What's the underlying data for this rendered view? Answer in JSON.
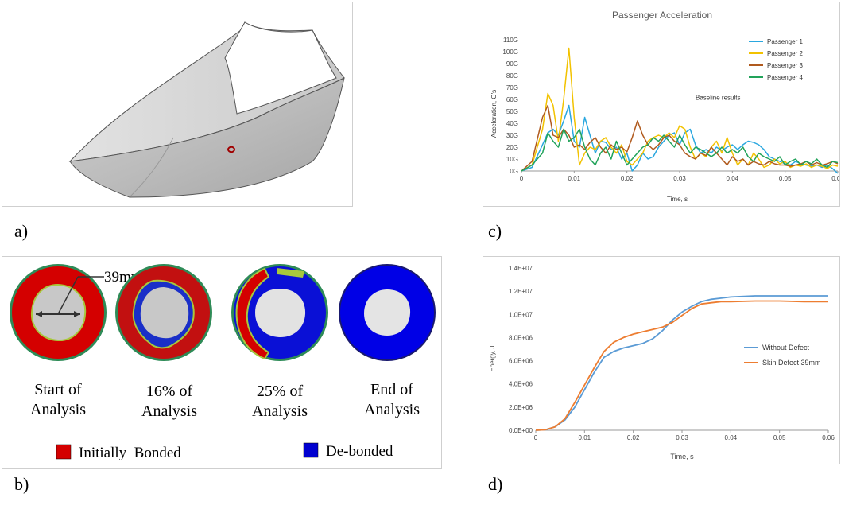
{
  "panel_labels": {
    "a": "a)",
    "b": "b)",
    "c": "c)",
    "d": "d)"
  },
  "figure_b": {
    "dimension_label": "39mm",
    "circles": [
      {
        "caption_line1": "Start of",
        "caption_line2": "Analysis"
      },
      {
        "caption_line1": "16% of",
        "caption_line2": "Analysis"
      },
      {
        "caption_line1": "25% of",
        "caption_line2": "Analysis"
      },
      {
        "caption_line1": "End of",
        "caption_line2": "Analysis"
      }
    ],
    "legend": [
      {
        "label": "Initially  Bonded",
        "color": "#d40000"
      },
      {
        "label": "De-bonded",
        "color": "#0000d0"
      }
    ]
  },
  "chart_data": [
    {
      "type": "line",
      "title": "Passenger Acceleration",
      "xlabel": "Time, s",
      "ylabel": "Acceleration, G's",
      "xlim": [
        0,
        0.06
      ],
      "ylim": [
        0,
        110
      ],
      "x_ticks": [
        "0",
        "0.01",
        "0.02",
        "0.03",
        "0.04",
        "0.05",
        "0.06"
      ],
      "y_ticks": [
        "0G",
        "10G",
        "20G",
        "30G",
        "40G",
        "50G",
        "60G",
        "70G",
        "80G",
        "90G",
        "100G",
        "110G"
      ],
      "baseline": {
        "label": "Baseline results",
        "value": 57
      },
      "legend_position": "top-right",
      "x": [
        0,
        0.002,
        0.004,
        0.005,
        0.006,
        0.007,
        0.008,
        0.009,
        0.01,
        0.011,
        0.012,
        0.013,
        0.014,
        0.015,
        0.016,
        0.017,
        0.018,
        0.019,
        0.02,
        0.021,
        0.022,
        0.023,
        0.024,
        0.025,
        0.026,
        0.027,
        0.028,
        0.029,
        0.03,
        0.031,
        0.032,
        0.033,
        0.034,
        0.035,
        0.036,
        0.037,
        0.038,
        0.039,
        0.04,
        0.041,
        0.042,
        0.043,
        0.044,
        0.045,
        0.046,
        0.047,
        0.048,
        0.049,
        0.05,
        0.051,
        0.052,
        0.053,
        0.054,
        0.055,
        0.056,
        0.057,
        0.058,
        0.059,
        0.06
      ],
      "series": [
        {
          "name": "Passenger 1",
          "color": "#2aa7df",
          "values": [
            0,
            3,
            22,
            32,
            35,
            30,
            42,
            55,
            25,
            20,
            45,
            30,
            15,
            25,
            24,
            18,
            20,
            10,
            15,
            0,
            5,
            15,
            10,
            12,
            20,
            25,
            30,
            32,
            22,
            32,
            35,
            22,
            15,
            18,
            15,
            20,
            17,
            20,
            22,
            18,
            22,
            25,
            24,
            22,
            18,
            12,
            10,
            8,
            6,
            5,
            8,
            6,
            5,
            4,
            5,
            3,
            5,
            2,
            -2
          ]
        },
        {
          "name": "Passenger 2",
          "color": "#f2c200",
          "values": [
            0,
            5,
            35,
            65,
            55,
            25,
            60,
            103,
            45,
            5,
            15,
            20,
            18,
            25,
            28,
            20,
            15,
            22,
            8,
            5,
            10,
            15,
            25,
            28,
            30,
            28,
            32,
            28,
            38,
            35,
            20,
            10,
            15,
            12,
            20,
            25,
            15,
            28,
            15,
            5,
            10,
            5,
            15,
            10,
            3,
            5,
            10,
            6,
            8,
            3,
            5,
            4,
            6,
            3,
            5,
            4,
            2,
            5,
            4
          ]
        },
        {
          "name": "Passenger 3",
          "color": "#b05a1e",
          "values": [
            0,
            8,
            45,
            55,
            30,
            28,
            35,
            30,
            20,
            22,
            18,
            24,
            28,
            20,
            15,
            22,
            18,
            20,
            16,
            28,
            42,
            30,
            22,
            18,
            22,
            28,
            30,
            25,
            22,
            15,
            12,
            10,
            15,
            13,
            20,
            15,
            10,
            5,
            12,
            8,
            10,
            5,
            8,
            6,
            5,
            8,
            6,
            5,
            5,
            4,
            5,
            6,
            8,
            5,
            7,
            5,
            6,
            8,
            6
          ]
        },
        {
          "name": "Passenger 4",
          "color": "#22a35a",
          "values": [
            0,
            5,
            15,
            32,
            25,
            20,
            35,
            25,
            28,
            35,
            20,
            10,
            5,
            15,
            20,
            10,
            25,
            15,
            5,
            10,
            15,
            20,
            22,
            28,
            25,
            30,
            25,
            20,
            30,
            22,
            15,
            20,
            18,
            15,
            12,
            15,
            20,
            15,
            18,
            15,
            20,
            12,
            8,
            15,
            12,
            10,
            8,
            12,
            5,
            8,
            10,
            5,
            8,
            6,
            10,
            5,
            3,
            8,
            7
          ]
        }
      ]
    },
    {
      "type": "line",
      "title": "",
      "xlabel": "Time, s",
      "ylabel": "Energy, J",
      "xlim": [
        0,
        0.06
      ],
      "ylim": [
        0,
        14000000
      ],
      "x_ticks": [
        "0",
        "0.01",
        "0.02",
        "0.03",
        "0.04",
        "0.05",
        "0.06"
      ],
      "y_ticks": [
        "0.0E+00",
        "2.0E+06",
        "4.0E+06",
        "6.0E+06",
        "8.0E+06",
        "1.0E+07",
        "1.2E+07",
        "1.4E+07"
      ],
      "legend_position": "right",
      "x": [
        0,
        0.002,
        0.004,
        0.006,
        0.008,
        0.01,
        0.012,
        0.014,
        0.016,
        0.018,
        0.02,
        0.022,
        0.024,
        0.026,
        0.028,
        0.03,
        0.032,
        0.034,
        0.036,
        0.038,
        0.04,
        0.045,
        0.05,
        0.055,
        0.06
      ],
      "series": [
        {
          "name": "Without Defect",
          "color": "#5b9bd5",
          "values": [
            0,
            50000,
            300000,
            900000,
            2000000,
            3500000,
            5000000,
            6300000,
            6800000,
            7100000,
            7300000,
            7500000,
            7900000,
            8600000,
            9500000,
            10200000,
            10700000,
            11100000,
            11300000,
            11400000,
            11500000,
            11600000,
            11600000,
            11600000,
            11600000
          ]
        },
        {
          "name": "Skin Defect 39mm",
          "color": "#ed7d31",
          "values": [
            0,
            50000,
            300000,
            1000000,
            2400000,
            3900000,
            5400000,
            6800000,
            7600000,
            8000000,
            8300000,
            8500000,
            8700000,
            8900000,
            9300000,
            9900000,
            10500000,
            10900000,
            11000000,
            11100000,
            11100000,
            11150000,
            11150000,
            11100000,
            11100000
          ]
        }
      ]
    }
  ]
}
